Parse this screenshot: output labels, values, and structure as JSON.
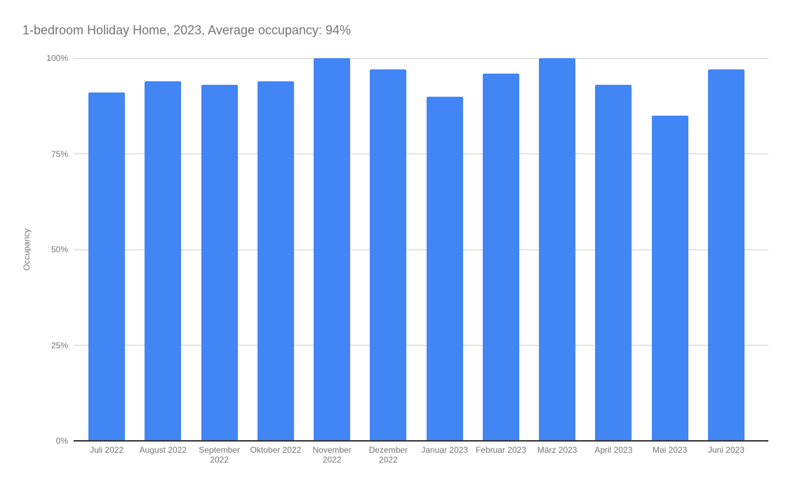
{
  "title": "1-bedroom Holiday Home, 2023, Average occupancy: 94%",
  "average_occupancy": "94%",
  "colors": {
    "bar": "#4285f4",
    "title_text": "#757575",
    "axis_text": "#757575",
    "gridline": "#cfcfcf",
    "baseline": "#333333",
    "background": "#ffffff"
  },
  "chart_data": {
    "type": "bar",
    "title": "1-bedroom Holiday Home, 2023, Average occupancy: 94%",
    "xlabel": "",
    "ylabel": "Occupancy",
    "ylim": [
      0,
      100
    ],
    "grid": true,
    "legend_position": "none",
    "bar_color": "#4285f4",
    "categories": [
      "Juli 2022",
      "August 2022",
      "September 2022",
      "Oktober 2022",
      "November 2022",
      "Dezember 2022",
      "Januar 2023",
      "Februar 2023",
      "März 2023",
      "April 2023",
      "Mai 2023",
      "Juni 2023"
    ],
    "values": [
      91,
      94,
      93,
      94,
      100,
      97,
      90,
      96,
      100,
      93,
      85,
      97
    ],
    "y_ticks": [
      {
        "value": 0,
        "label": "0%"
      },
      {
        "value": 25,
        "label": "25%"
      },
      {
        "value": 50,
        "label": "50%"
      },
      {
        "value": 75,
        "label": "75%"
      },
      {
        "value": 100,
        "label": "100%"
      }
    ]
  }
}
